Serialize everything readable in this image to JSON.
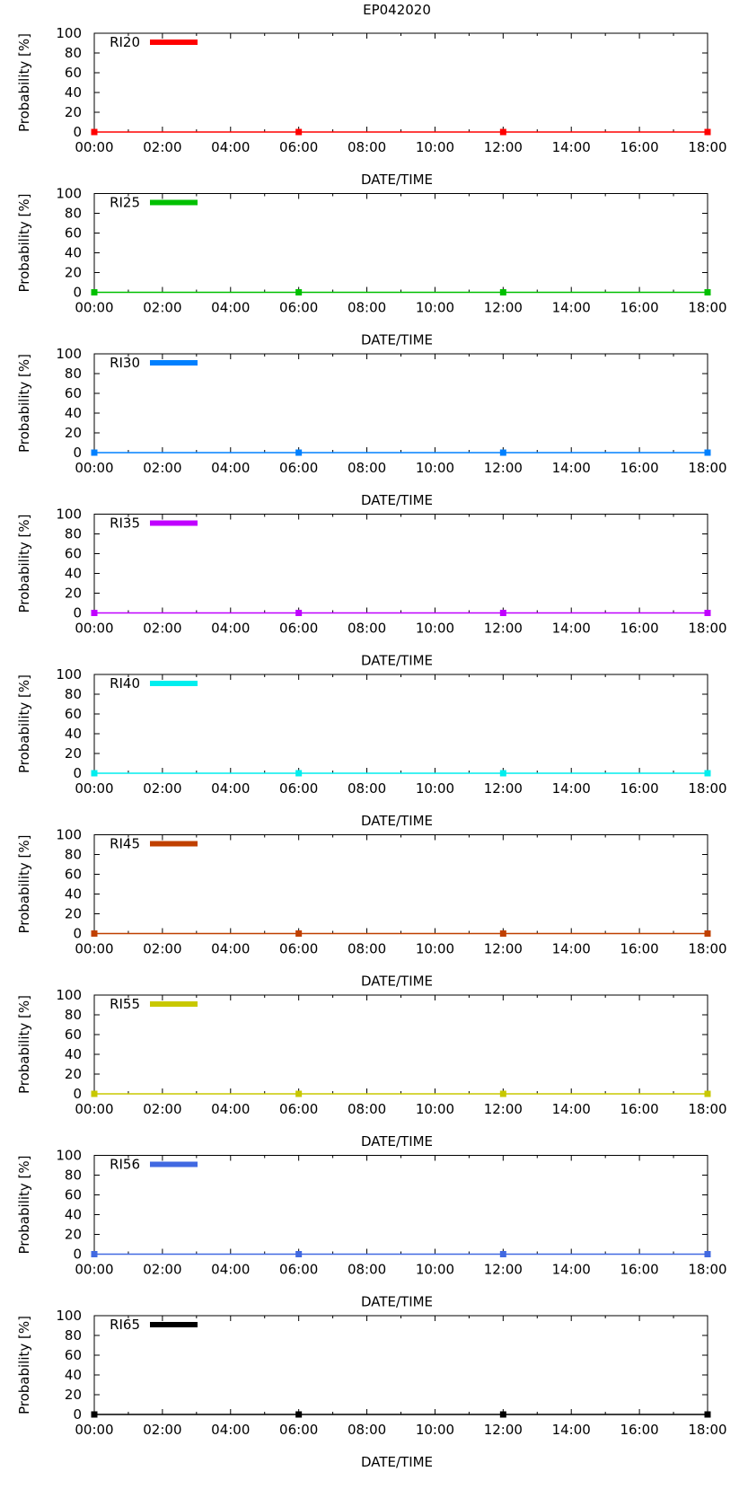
{
  "chart_data": {
    "title": "EP042020",
    "type": "line",
    "xlabel": "DATE/TIME",
    "ylabel": "Probability [%]",
    "x_ticks": [
      "00:00",
      "02:00",
      "04:00",
      "06:00",
      "08:00",
      "10:00",
      "12:00",
      "14:00",
      "16:00",
      "18:00"
    ],
    "y_ticks": [
      "0",
      "20",
      "40",
      "60",
      "80",
      "100"
    ],
    "xlim_hours": [
      0,
      18
    ],
    "ylim": [
      0,
      100
    ],
    "x_hours": [
      0,
      6,
      12,
      18
    ],
    "panels": [
      {
        "name": "RI20",
        "color": "#ff0000",
        "values": [
          0,
          0,
          0,
          0
        ]
      },
      {
        "name": "RI25",
        "color": "#00c000",
        "values": [
          0,
          0,
          0,
          0
        ]
      },
      {
        "name": "RI30",
        "color": "#0080ff",
        "values": [
          0,
          0,
          0,
          0
        ]
      },
      {
        "name": "RI35",
        "color": "#c000ff",
        "values": [
          0,
          0,
          0,
          0
        ]
      },
      {
        "name": "RI40",
        "color": "#00eeee",
        "values": [
          0,
          0,
          0,
          0
        ]
      },
      {
        "name": "RI45",
        "color": "#c04000",
        "values": [
          0,
          0,
          0,
          0
        ]
      },
      {
        "name": "RI55",
        "color": "#c8c800",
        "values": [
          0,
          0,
          0,
          0
        ]
      },
      {
        "name": "RI56",
        "color": "#4169e1",
        "values": [
          0,
          0,
          0,
          0
        ]
      },
      {
        "name": "RI65",
        "color": "#000000",
        "values": [
          0,
          0,
          0,
          0
        ]
      }
    ]
  }
}
